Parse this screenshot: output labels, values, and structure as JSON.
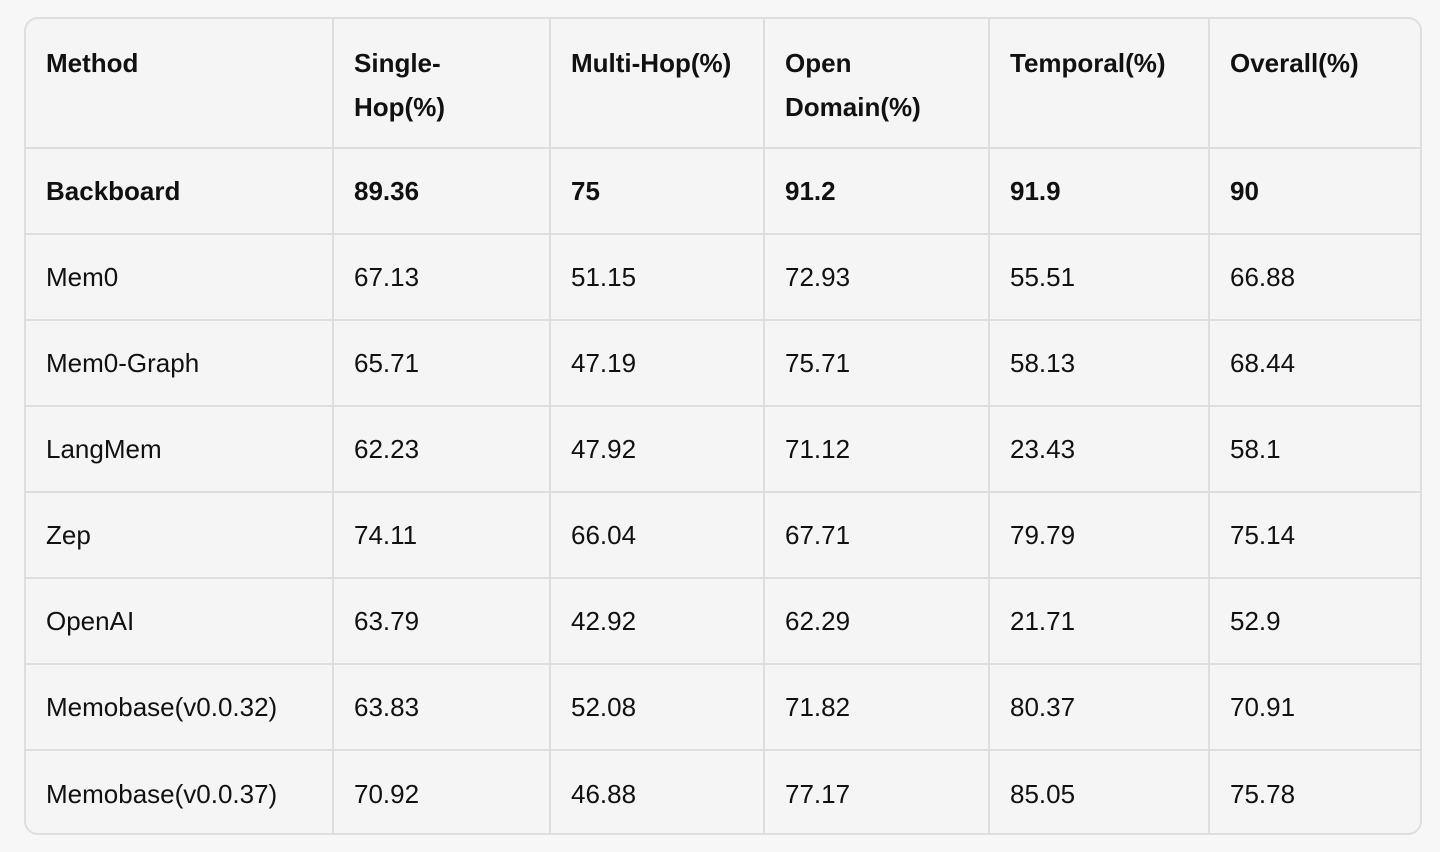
{
  "table": {
    "header": [
      "Method",
      "Single-Hop(%)",
      "Multi-Hop(%)",
      "Open Domain(%)",
      "Temporal(%)",
      "Overall(%)"
    ],
    "rows": [
      [
        "Backboard",
        "89.36",
        "75",
        "91.2",
        "91.9",
        "90"
      ],
      [
        "Mem0",
        "67.13",
        "51.15",
        "72.93",
        "55.51",
        "66.88"
      ],
      [
        "Mem0-Graph",
        "65.71",
        "47.19",
        "75.71",
        "58.13",
        "68.44"
      ],
      [
        "LangMem",
        "62.23",
        "47.92",
        "71.12",
        "23.43",
        "58.1"
      ],
      [
        "Zep",
        "74.11",
        "66.04",
        "67.71",
        "79.79",
        "75.14"
      ],
      [
        "OpenAI",
        "63.79",
        "42.92",
        "62.29",
        "21.71",
        "52.9"
      ],
      [
        "Memobase(v0.0.32)",
        "63.83",
        "52.08",
        "71.82",
        "80.37",
        "70.91"
      ],
      [
        "Memobase(v0.0.37)",
        "70.92",
        "46.88",
        "77.17",
        "85.05",
        "75.78"
      ]
    ]
  }
}
